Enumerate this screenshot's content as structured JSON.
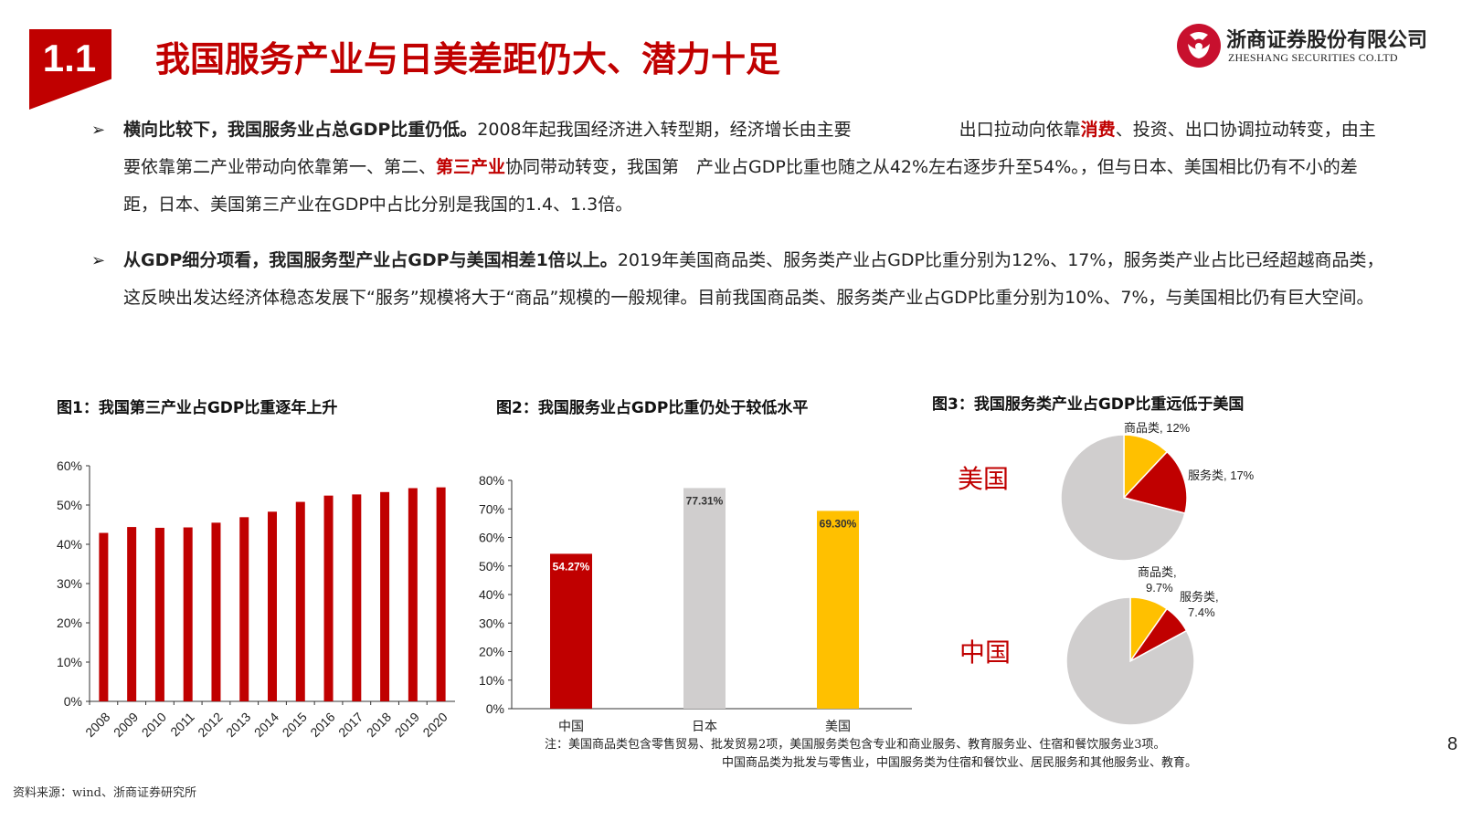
{
  "header": {
    "section_number": "1.1",
    "title": "我国服务产业与日美差距仍大、潜力十足",
    "company_cn": "浙商证券股份有限公司",
    "company_en": "ZHESHANG SECURITIES CO.LTD",
    "logo_icon": "zheshang-logo-icon",
    "accent_color": "#c00000"
  },
  "bullets": [
    {
      "marker": "➢",
      "bold": "横向比较下，我国服务业占总GDP比重仍低。",
      "text_a": "2008年起我国经济进入转型期，经济增长由主要",
      "text_b": "出口拉动向依靠",
      "highlight_1": "消费",
      "text_c": "、投资、出口协调拉动转变，由主要依靠第二产业带动向依靠第一、第二、",
      "highlight_2": "第三产业",
      "text_d": "协同带动转变，我国第　产业占GDP比重也随之从42%左右逐步升至54%。，但与日本、美国相比仍有不小的差距，日本、美国第三产业在GDP中占比分别是我国的1.4、1.3倍。"
    },
    {
      "marker": "➢",
      "bold": "从GDP细分项看，我国服务型产业占GDP与美国相差1倍以上。",
      "text": "2019年美国商品类、服务类产业占GDP比重分别为12%、17%，服务类产业占比已经超越商品类，这反映出发达经济体稳态发展下“服务”规模将大于“商品”规模的一般规律。目前我国商品类、服务类产业占GDP比重分别为10%、7%，与美国相比仍有巨大空间。"
    }
  ],
  "figures": {
    "fig1_title": "图1：我国第三产业占GDP比重逐年上升",
    "fig2_title": "图2：我国服务业占GDP比重仍处于较低水平",
    "fig3_title": "图3：我国服务类产业占GDP比重远低于美国"
  },
  "chart_data": [
    {
      "type": "bar",
      "title": "图1：我国第三产业占GDP比重逐年上升",
      "categories": [
        "2008",
        "2009",
        "2010",
        "2011",
        "2012",
        "2013",
        "2014",
        "2015",
        "2016",
        "2017",
        "2018",
        "2019",
        "2020"
      ],
      "values": [
        42.9,
        44.4,
        44.2,
        44.3,
        45.5,
        46.9,
        48.3,
        50.8,
        52.4,
        52.7,
        53.3,
        54.3,
        54.5
      ],
      "yticks": [
        "0%",
        "10%",
        "20%",
        "30%",
        "40%",
        "50%",
        "60%"
      ],
      "ylim": [
        0,
        60
      ],
      "color": "#c00000",
      "grid": false
    },
    {
      "type": "bar",
      "title": "图2：我国服务业占GDP比重仍处于较低水平",
      "categories": [
        "中国",
        "日本",
        "美国"
      ],
      "values": [
        54.27,
        77.31,
        69.3
      ],
      "data_labels": [
        "54.27%",
        "77.31%",
        "69.30%"
      ],
      "colors": [
        "#c00000",
        "#d0cece",
        "#ffc000"
      ],
      "label_colors": [
        "#ffffff",
        "#333333",
        "#333333"
      ],
      "yticks": [
        "0%",
        "10%",
        "20%",
        "30%",
        "40%",
        "50%",
        "60%",
        "70%",
        "80%"
      ],
      "ylim": [
        0,
        80
      ],
      "grid": false
    },
    {
      "type": "pie",
      "title": "图3：我国服务类产业占GDP比重远低于美国",
      "pies": [
        {
          "label": "美国",
          "slices": [
            {
              "name": "商品类",
              "value": 12,
              "label": "商品类, 12%",
              "color": "#ffc000"
            },
            {
              "name": "服务类",
              "value": 17,
              "label": "服务类, 17%",
              "color": "#c00000"
            },
            {
              "name": "",
              "value": 71,
              "label": "",
              "color": "#d0cece"
            }
          ]
        },
        {
          "label": "中国",
          "slices": [
            {
              "name": "商品类",
              "value": 9.7,
              "label_line1": "商品类,",
              "label_line2": "9.7%",
              "color": "#ffc000"
            },
            {
              "name": "服务类",
              "value": 7.4,
              "label_line1": "服务类,",
              "label_line2": "7.4%",
              "color": "#c00000"
            },
            {
              "name": "",
              "value": 82.9,
              "label": "",
              "color": "#d0cece"
            }
          ]
        }
      ]
    }
  ],
  "notes": {
    "line1": "注：美国商品类包含零售贸易、批发贸易2项，美国服务类包含专业和商业服务、教育服务业、住宿和餐饮服务业3项。",
    "line2": "中国商品类为批发与零售业，中国服务类为住宿和餐饮业、居民服务和其他服务业、教育。"
  },
  "page_number": "8",
  "source": "资料来源：wind、浙商证券研究所"
}
